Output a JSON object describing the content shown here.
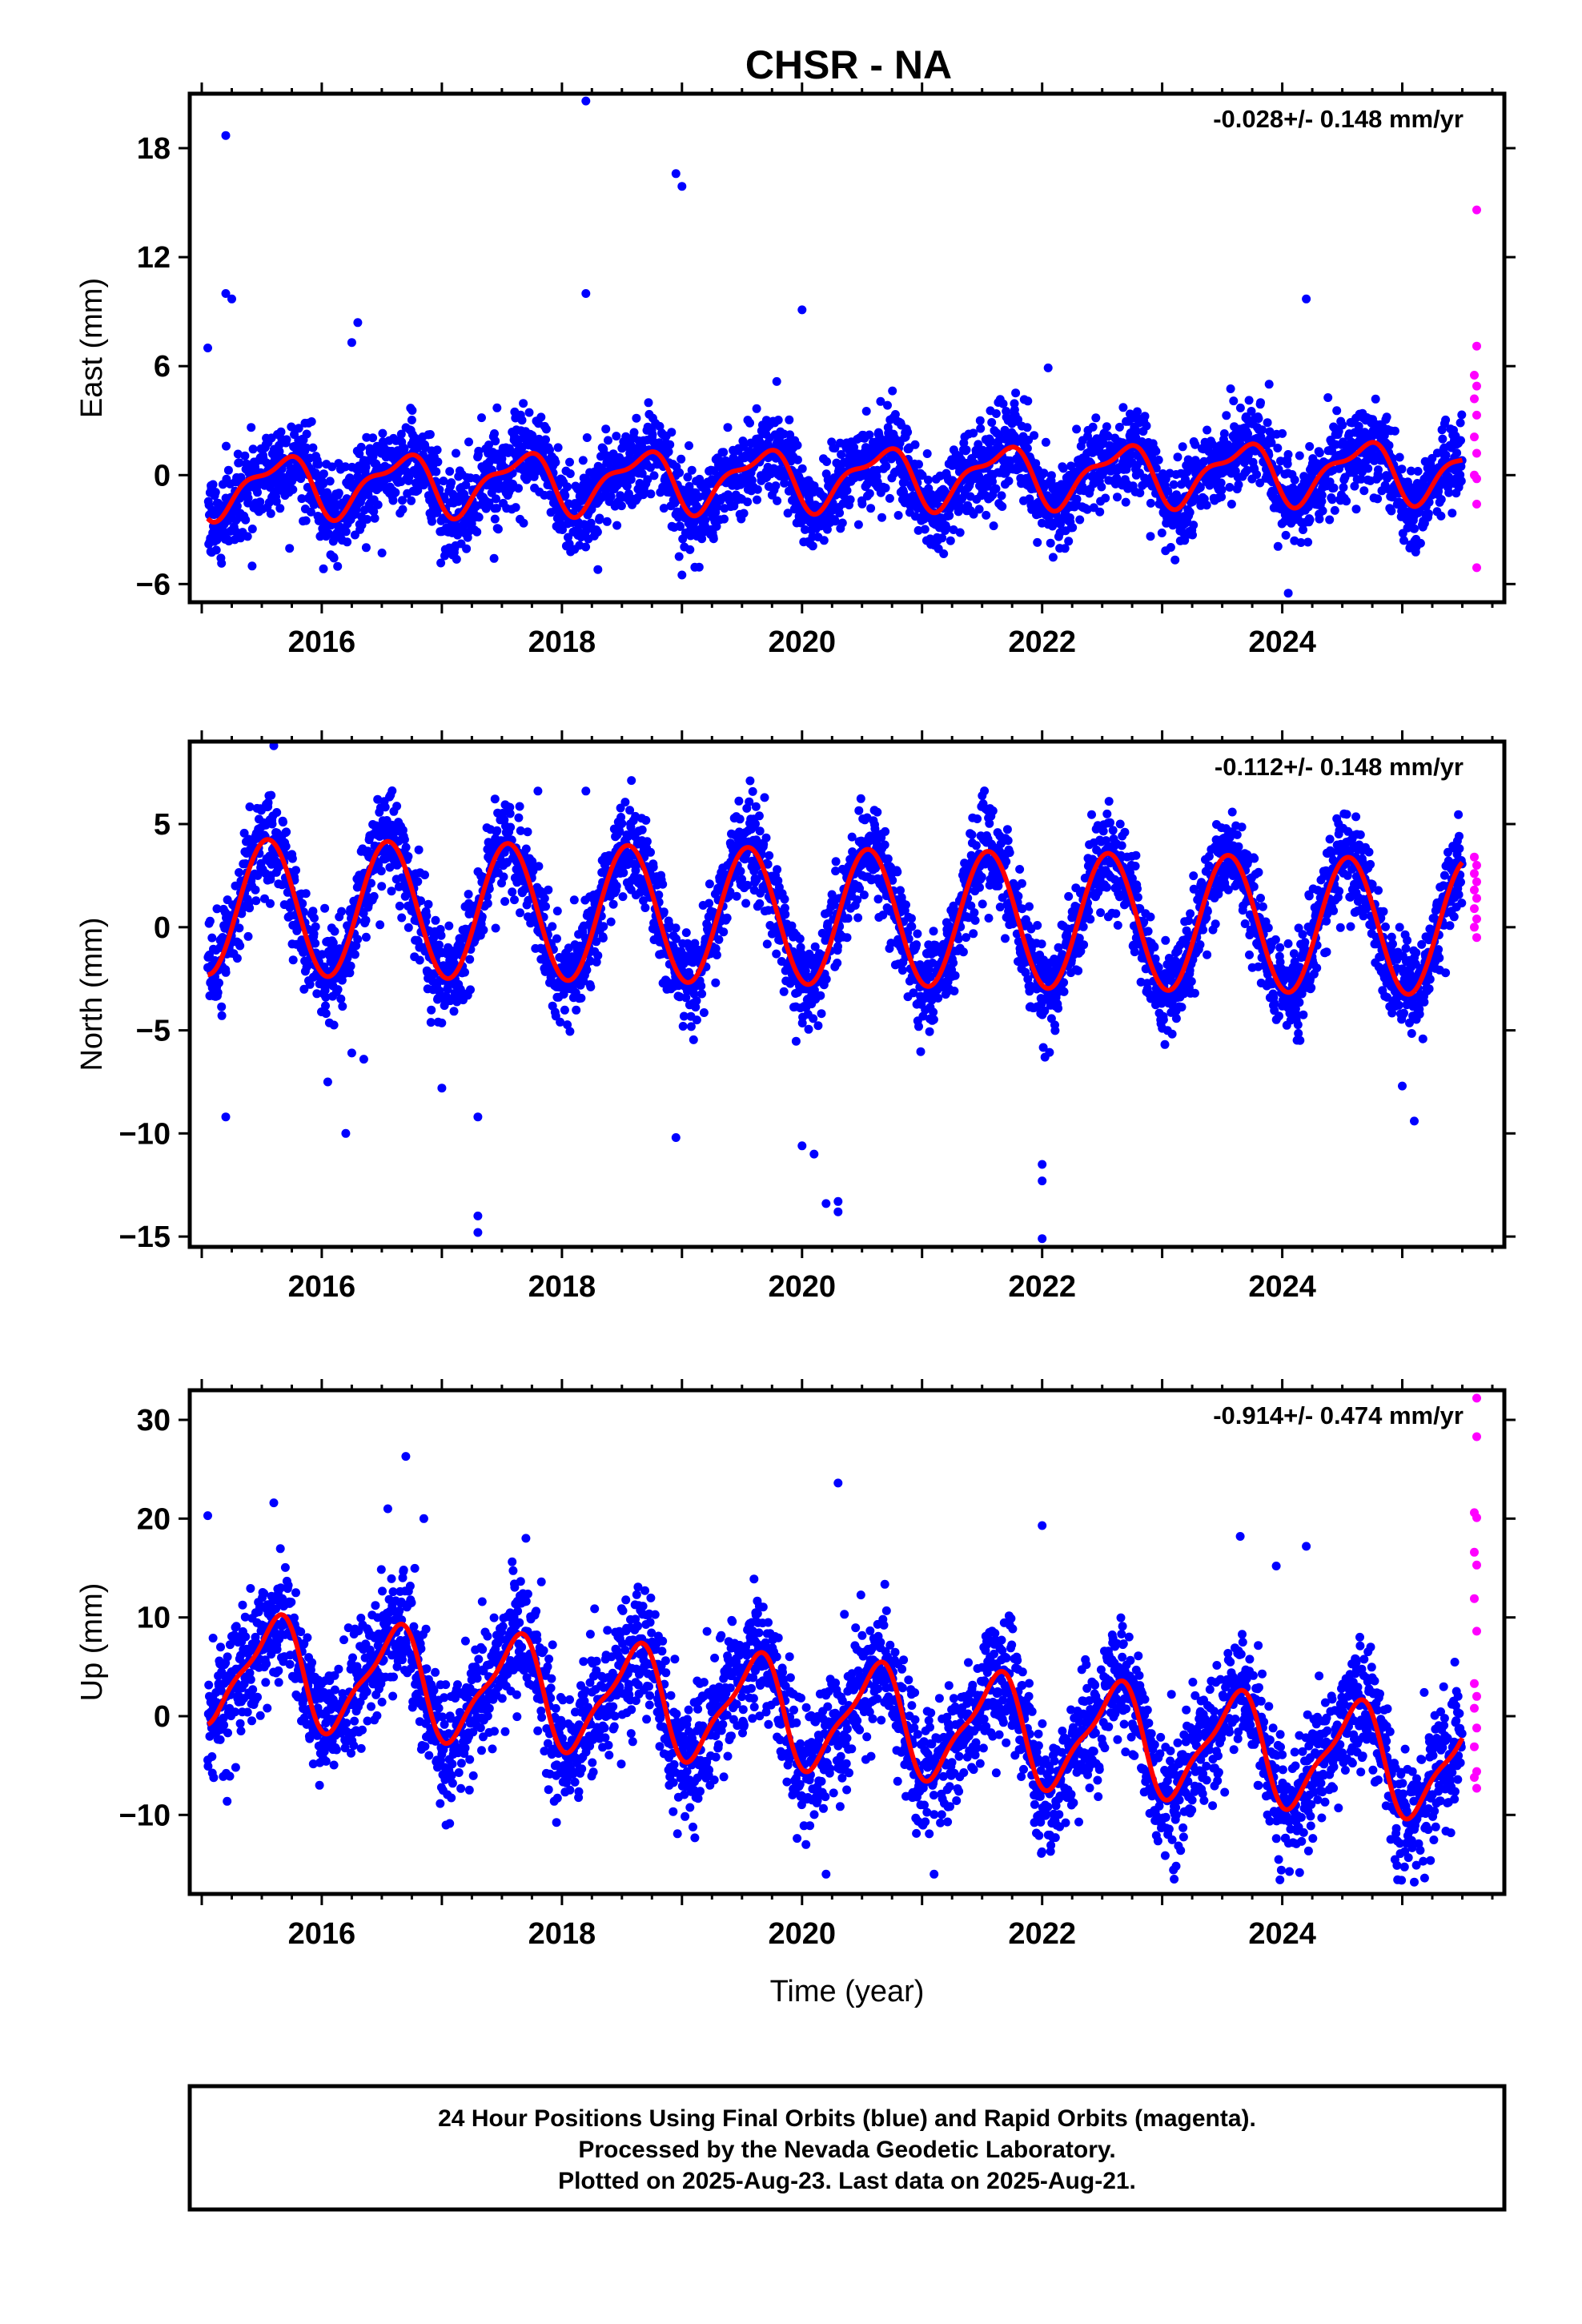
{
  "title": "CHSR - NA",
  "footer_lines": [
    "24 Hour Positions Using Final Orbits (blue) and Rapid Orbits (magenta).",
    "Processed by the Nevada Geodetic Laboratory.",
    "Plotted on 2025-Aug-23. Last data on 2025-Aug-21."
  ],
  "colors": {
    "final": "#0000ff",
    "rapid": "#ff00ff",
    "model": "#ff0000",
    "axis": "#000000"
  },
  "chart_data": [
    {
      "type": "scatter",
      "title": "CHSR - NA",
      "ylabel": "East (mm)",
      "xlabel": "",
      "rate_text": "-0.028+/- 0.148 mm/yr",
      "xlim": [
        2014.9,
        2025.85
      ],
      "ylim": [
        -7,
        21
      ],
      "yticks": [
        -6,
        0,
        6,
        12,
        18
      ],
      "xticks": [
        2016,
        2018,
        2020,
        2022,
        2024
      ],
      "model": {
        "mean_start": -0.6,
        "mean_end": 0.3,
        "annual_amp": 1.5,
        "annual_phase": 0.4,
        "semiannual_amp": 0.6,
        "semiannual_phase": 0.2
      },
      "scatter_sd": 1.2,
      "outliers": [
        [
          2015.05,
          7.0
        ],
        [
          2015.2,
          18.7
        ],
        [
          2015.2,
          10.0
        ],
        [
          2015.25,
          9.7
        ],
        [
          2016.25,
          7.3
        ],
        [
          2016.3,
          8.4
        ],
        [
          2018.2,
          20.6
        ],
        [
          2018.2,
          10.0
        ],
        [
          2018.95,
          16.6
        ],
        [
          2019.0,
          15.9
        ],
        [
          2020.0,
          9.1
        ],
        [
          2022.05,
          5.9
        ],
        [
          2024.2,
          9.7
        ],
        [
          2024.05,
          -6.5
        ],
        [
          2018.3,
          -5.2
        ],
        [
          2019.0,
          -5.5
        ]
      ],
      "rapid": [
        [
          2025.62,
          14.6
        ],
        [
          2025.62,
          7.1
        ],
        [
          2025.6,
          5.5
        ],
        [
          2025.62,
          4.9
        ],
        [
          2025.6,
          4.2
        ],
        [
          2025.62,
          3.3
        ],
        [
          2025.6,
          2.1
        ],
        [
          2025.62,
          1.2
        ],
        [
          2025.6,
          0.0
        ],
        [
          2025.62,
          -0.2
        ],
        [
          2025.62,
          -1.6
        ],
        [
          2025.62,
          -5.1
        ]
      ]
    },
    {
      "type": "scatter",
      "ylabel": "North (mm)",
      "xlabel": "",
      "rate_text": "-0.112+/- 0.148 mm/yr",
      "xlim": [
        2014.9,
        2025.85
      ],
      "ylim": [
        -15.5,
        9.0
      ],
      "yticks": [
        -15,
        -10,
        -5,
        0,
        5
      ],
      "xticks": [
        2016,
        2018,
        2020,
        2022,
        2024
      ],
      "model": {
        "mean_start": 1.0,
        "mean_end": 0.0,
        "annual_amp": 3.3,
        "annual_phase": 0.3,
        "semiannual_amp": 0.0,
        "semiannual_phase": 0.0
      },
      "scatter_sd": 1.1,
      "outliers": [
        [
          2015.6,
          8.8
        ],
        [
          2015.2,
          -9.2
        ],
        [
          2016.05,
          -7.5
        ],
        [
          2016.2,
          -10.0
        ],
        [
          2016.25,
          -6.1
        ],
        [
          2016.35,
          -6.4
        ],
        [
          2017.0,
          -7.8
        ],
        [
          2017.3,
          -9.2
        ],
        [
          2017.3,
          -14.0
        ],
        [
          2017.3,
          -14.8
        ],
        [
          2018.95,
          -10.2
        ],
        [
          2020.0,
          -10.6
        ],
        [
          2020.1,
          -11.0
        ],
        [
          2020.2,
          -13.4
        ],
        [
          2020.3,
          -13.3
        ],
        [
          2020.3,
          -13.8
        ],
        [
          2022.0,
          -12.3
        ],
        [
          2022.0,
          -15.1
        ],
        [
          2022.0,
          -11.5
        ],
        [
          2025.0,
          -7.7
        ],
        [
          2025.1,
          -9.4
        ],
        [
          2017.8,
          6.6
        ],
        [
          2018.2,
          6.6
        ]
      ],
      "rapid": [
        [
          2025.6,
          3.4
        ],
        [
          2025.62,
          3.0
        ],
        [
          2025.6,
          2.6
        ],
        [
          2025.62,
          2.2
        ],
        [
          2025.6,
          1.8
        ],
        [
          2025.62,
          1.4
        ],
        [
          2025.6,
          0.9
        ],
        [
          2025.62,
          0.4
        ],
        [
          2025.6,
          0.0
        ],
        [
          2025.62,
          -0.5
        ]
      ]
    },
    {
      "type": "scatter",
      "ylabel": "Up (mm)",
      "xlabel": "Time (year)",
      "rate_text": "-0.914+/- 0.474 mm/yr",
      "xlim": [
        2014.9,
        2025.85
      ],
      "ylim": [
        -18,
        33
      ],
      "yticks": [
        -10,
        0,
        10,
        20,
        30
      ],
      "xticks": [
        2016,
        2018,
        2020,
        2022,
        2024
      ],
      "model": {
        "mean_start": 5.0,
        "mean_end": -5.0,
        "annual_amp": 5.2,
        "annual_phase": 0.35,
        "semiannual_amp": 1.5,
        "semiannual_phase": 0.1
      },
      "scatter_sd": 3.2,
      "outliers": [
        [
          2015.05,
          20.3
        ],
        [
          2015.6,
          21.6
        ],
        [
          2016.55,
          21.0
        ],
        [
          2016.7,
          26.3
        ],
        [
          2016.85,
          20.0
        ],
        [
          2020.3,
          23.6
        ],
        [
          2022.0,
          19.3
        ],
        [
          2023.65,
          18.2
        ],
        [
          2023.95,
          15.2
        ],
        [
          2024.2,
          17.2
        ],
        [
          2020.2,
          -16.0
        ],
        [
          2021.1,
          -16.0
        ],
        [
          2023.1,
          -16.5
        ],
        [
          2025.1,
          -16.8
        ]
      ],
      "rapid": [
        [
          2025.62,
          32.2
        ],
        [
          2025.62,
          28.3
        ],
        [
          2025.6,
          20.6
        ],
        [
          2025.62,
          20.1
        ],
        [
          2025.6,
          16.6
        ],
        [
          2025.62,
          15.3
        ],
        [
          2025.6,
          11.9
        ],
        [
          2025.62,
          8.6
        ],
        [
          2025.6,
          3.3
        ],
        [
          2025.62,
          2.0
        ],
        [
          2025.6,
          0.8
        ],
        [
          2025.62,
          -1.2
        ],
        [
          2025.6,
          -3.1
        ],
        [
          2025.62,
          -5.6
        ],
        [
          2025.6,
          -6.2
        ],
        [
          2025.62,
          -7.3
        ]
      ]
    }
  ]
}
